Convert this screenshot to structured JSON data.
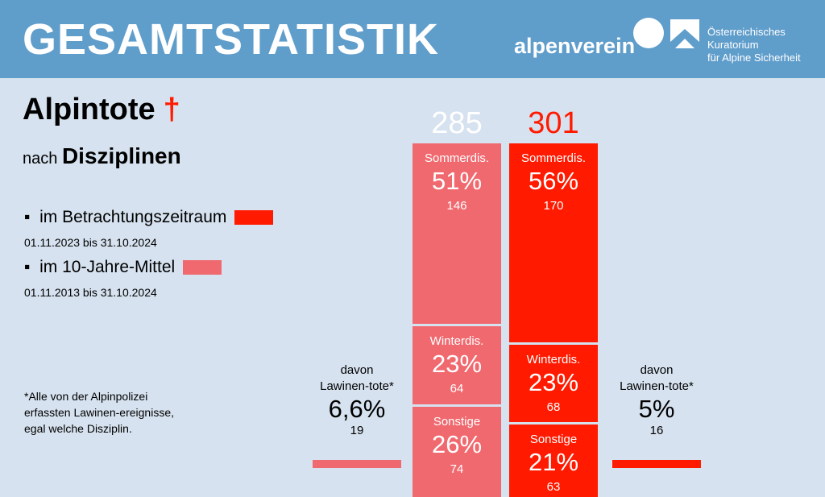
{
  "header": {
    "title": "GESAMTSTATISTIK",
    "logo_alpenverein": "alpenverein",
    "logo_okas": [
      "Österreichisches",
      "Kuratorium",
      "für Alpine Sicherheit"
    ]
  },
  "heading": {
    "title": "Alpintote",
    "cross": "†",
    "subtitle_prefix": "nach",
    "subtitle_bold": "Disziplinen"
  },
  "legend": [
    {
      "bullet": "▪",
      "label": "im Betrachtungszeitraum",
      "dates": "01.11.2023 bis 31.10.2024",
      "color": "#ff1a00"
    },
    {
      "bullet": "▪",
      "label": "im 10-Jahre-Mittel",
      "dates": "01.11.2013 bis 31.10.2024",
      "color": "#f0696f"
    }
  ],
  "footnote": "*Alle von der Alpinpolizei erfassten Lawinen-ereignisse, egal welche Disziplin.",
  "chart_data": {
    "type": "bar",
    "stacked": true,
    "series": [
      {
        "name": "im 10-Jahre-Mittel",
        "color": "#f0696f",
        "total": "285",
        "segments": [
          {
            "label": "Sommerdis.",
            "percent": "51%",
            "value": 146
          },
          {
            "label": "Winterdis.",
            "percent": "23%",
            "value": 64
          },
          {
            "label": "Sonstige",
            "percent": "26%",
            "value": 74
          }
        ],
        "avalanche": {
          "label": "davon Lawinen-tote*",
          "percent": "6,6%",
          "value": 19
        }
      },
      {
        "name": "im Betrachtungszeitraum",
        "color": "#ff1a00",
        "total": "301",
        "segments": [
          {
            "label": "Sommerdis.",
            "percent": "56%",
            "value": 170
          },
          {
            "label": "Winterdis.",
            "percent": "23%",
            "value": 68
          },
          {
            "label": "Sonstige",
            "percent": "21%",
            "value": 63
          }
        ],
        "avalanche": {
          "label": "davon Lawinen-tote*",
          "percent": "5%",
          "value": 16
        }
      }
    ]
  }
}
